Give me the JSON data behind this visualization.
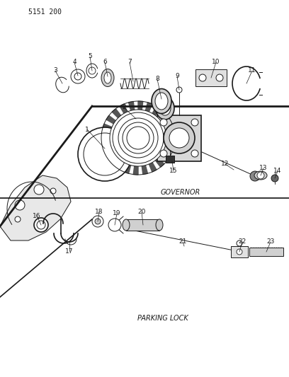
{
  "title": "5151 200",
  "governor_label": "GOVERNOR",
  "parking_label": "PARKING LOCK",
  "bg_color": "#ffffff",
  "line_color": "#1a1a1a",
  "figsize": [
    4.08,
    5.33
  ],
  "dpi": 100
}
